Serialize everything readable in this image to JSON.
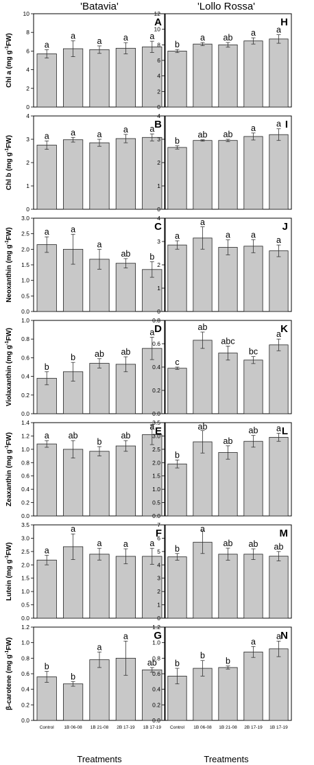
{
  "figure": {
    "col_titles": [
      "'Batavia'",
      "'Lollo Rossa'"
    ],
    "x_axis_title": "Treatments"
  },
  "chart_data": [
    {
      "panel": "A",
      "type": "bar",
      "cultivar": "'Batavia'",
      "ylabel": "Chl a (mg g-1FW)",
      "ylim": [
        0,
        10
      ],
      "yticks": [
        0,
        2,
        4,
        6,
        8,
        10
      ],
      "categories": [
        "Control",
        "1B 06-08",
        "1B 21-08",
        "2B 17-19",
        "1B 17-19"
      ],
      "values": [
        5.7,
        6.25,
        6.15,
        6.3,
        6.45
      ],
      "errors": [
        0.45,
        0.85,
        0.4,
        0.6,
        0.6
      ],
      "letters": [
        "a",
        "a",
        "a",
        "a",
        "a"
      ]
    },
    {
      "panel": "B",
      "type": "bar",
      "cultivar": "'Batavia'",
      "ylabel": "Chl b (mg g-1FW)",
      "ylim": [
        0,
        4
      ],
      "yticks": [
        0,
        1,
        2,
        3,
        4
      ],
      "categories": [
        "Control",
        "1B 06-08",
        "1B 21-08",
        "2B 17-19",
        "1B 17-19"
      ],
      "values": [
        2.75,
        2.98,
        2.85,
        3.03,
        3.08
      ],
      "errors": [
        0.18,
        0.1,
        0.15,
        0.18,
        0.15
      ],
      "letters": [
        "a",
        "a",
        "a",
        "a",
        "a"
      ]
    },
    {
      "panel": "C",
      "type": "bar",
      "cultivar": "'Batavia'",
      "ylabel": "Neoxanthin (mg g-1FW)",
      "ylim": [
        0,
        3.0
      ],
      "yticks": [
        0.0,
        0.5,
        1.0,
        1.5,
        2.0,
        2.5,
        3.0
      ],
      "categories": [
        "Control",
        "1B 06-08",
        "1B 21-08",
        "2B 17-19",
        "1B 17-19"
      ],
      "values": [
        2.15,
        2.0,
        1.68,
        1.55,
        1.35
      ],
      "errors": [
        0.25,
        0.48,
        0.32,
        0.15,
        0.25
      ],
      "letters": [
        "a",
        "a",
        "a",
        "ab",
        "b"
      ]
    },
    {
      "panel": "D",
      "type": "bar",
      "cultivar": "'Batavia'",
      "ylabel": "Violaxanthin (mg g-1FW)",
      "ylim": [
        0,
        1.0
      ],
      "yticks": [
        0.0,
        0.2,
        0.4,
        0.6,
        0.8,
        1.0
      ],
      "categories": [
        "Control",
        "1B 06-08",
        "1B 21-08",
        "2B 17-19",
        "1B 17-19"
      ],
      "values": [
        0.38,
        0.45,
        0.54,
        0.53,
        0.7
      ],
      "errors": [
        0.07,
        0.1,
        0.05,
        0.08,
        0.12
      ],
      "letters": [
        "b",
        "b",
        "ab",
        "ab",
        "a"
      ]
    },
    {
      "panel": "E",
      "type": "bar",
      "cultivar": "'Batavia'",
      "ylabel": "Zeaxanthin (mg g-1FW)",
      "ylim": [
        0,
        1.4
      ],
      "yticks": [
        0.0,
        0.2,
        0.4,
        0.6,
        0.8,
        1.0,
        1.2,
        1.4
      ],
      "categories": [
        "Control",
        "1B 06-08",
        "1B 21-08",
        "2B 17-19",
        "1B 17-19"
      ],
      "values": [
        1.08,
        1.0,
        0.97,
        1.05,
        1.22
      ],
      "errors": [
        0.05,
        0.13,
        0.07,
        0.08,
        0.15
      ],
      "letters": [
        "a",
        "ab",
        "b",
        "ab",
        "a"
      ]
    },
    {
      "panel": "F",
      "type": "bar",
      "cultivar": "'Batavia'",
      "ylabel": "Lutein (mg g-1FW)",
      "ylim": [
        0,
        3.5
      ],
      "yticks": [
        0.0,
        0.5,
        1.0,
        1.5,
        2.0,
        2.5,
        3.0,
        3.5
      ],
      "categories": [
        "Control",
        "1B 06-08",
        "1B 21-08",
        "2B 17-19",
        "1B 17-19"
      ],
      "values": [
        2.18,
        2.68,
        2.4,
        2.32,
        2.32
      ],
      "errors": [
        0.18,
        0.48,
        0.22,
        0.28,
        0.3
      ],
      "letters": [
        "a",
        "a",
        "a",
        "a",
        "a"
      ]
    },
    {
      "panel": "G",
      "type": "bar",
      "cultivar": "'Batavia'",
      "ylabel": "β-carotene (mg g-1FW)",
      "ylim": [
        0,
        1.2
      ],
      "yticks": [
        0.0,
        0.2,
        0.4,
        0.6,
        0.8,
        1.0,
        1.2
      ],
      "categories": [
        "Control",
        "1B 06-08",
        "1B 21-08",
        "2B 17-19",
        "1B 17-19"
      ],
      "values": [
        0.56,
        0.47,
        0.78,
        0.8,
        0.65
      ],
      "errors": [
        0.07,
        0.03,
        0.1,
        0.22,
        0.03
      ],
      "letters": [
        "b",
        "b",
        "a",
        "a",
        "ab"
      ]
    },
    {
      "panel": "H",
      "type": "bar",
      "cultivar": "'Lollo Rossa'",
      "ylabel": "",
      "ylim": [
        0,
        12
      ],
      "yticks": [
        0,
        2,
        4,
        6,
        8,
        10,
        12
      ],
      "categories": [
        "Control",
        "1B 06-08",
        "1B 21-08",
        "2B 17-19",
        "1B 17-19"
      ],
      "values": [
        7.2,
        8.1,
        8.0,
        8.5,
        8.75
      ],
      "errors": [
        0.2,
        0.2,
        0.3,
        0.4,
        0.55
      ],
      "letters": [
        "b",
        "a",
        "ab",
        "a",
        "a"
      ]
    },
    {
      "panel": "I",
      "type": "bar",
      "cultivar": "'Lollo Rossa'",
      "ylabel": "",
      "ylim": [
        0,
        4
      ],
      "yticks": [
        0,
        1,
        2,
        3,
        4
      ],
      "categories": [
        "Control",
        "1B 06-08",
        "1B 21-08",
        "2B 17-19",
        "1B 17-19"
      ],
      "values": [
        2.65,
        2.95,
        2.95,
        3.12,
        3.2
      ],
      "errors": [
        0.07,
        0.03,
        0.05,
        0.15,
        0.25
      ],
      "letters": [
        "b",
        "ab",
        "ab",
        "a",
        "a"
      ]
    },
    {
      "panel": "J",
      "type": "bar",
      "cultivar": "'Lollo Rossa'",
      "ylabel": "",
      "ylim": [
        0,
        4
      ],
      "yticks": [
        0,
        1,
        2,
        3,
        4
      ],
      "categories": [
        "Control",
        "1B 06-08",
        "1B 21-08",
        "2B 17-19",
        "1B 17-19"
      ],
      "values": [
        2.85,
        3.15,
        2.75,
        2.8,
        2.6
      ],
      "errors": [
        0.18,
        0.48,
        0.32,
        0.28,
        0.25
      ],
      "letters": [
        "a",
        "a",
        "a",
        "a",
        "a"
      ]
    },
    {
      "panel": "K",
      "type": "bar",
      "cultivar": "'Lollo Rossa'",
      "ylabel": "",
      "ylim": [
        0,
        0.8
      ],
      "yticks": [
        0.0,
        0.2,
        0.4,
        0.6,
        0.8
      ],
      "categories": [
        "Control",
        "1B 06-08",
        "1B 21-08",
        "2B 17-19",
        "1B 17-19"
      ],
      "values": [
        0.39,
        0.63,
        0.52,
        0.46,
        0.59
      ],
      "errors": [
        0.01,
        0.07,
        0.06,
        0.03,
        0.05
      ],
      "letters": [
        "c",
        "ab",
        "abc",
        "bc",
        "a"
      ]
    },
    {
      "panel": "L",
      "type": "bar",
      "cultivar": "'Lollo Rossa'",
      "ylabel": "",
      "ylim": [
        0,
        3.5
      ],
      "yticks": [
        0.0,
        0.5,
        1.0,
        1.5,
        2.0,
        2.5,
        3.0,
        3.5
      ],
      "categories": [
        "Control",
        "1B 06-08",
        "1B 21-08",
        "2B 17-19",
        "1B 17-19"
      ],
      "values": [
        1.95,
        2.78,
        2.38,
        2.8,
        2.95
      ],
      "errors": [
        0.15,
        0.42,
        0.25,
        0.22,
        0.15
      ],
      "letters": [
        "b",
        "ab",
        "ab",
        "ab",
        "a"
      ]
    },
    {
      "panel": "M",
      "type": "bar",
      "cultivar": "'Lollo Rossa'",
      "ylabel": "",
      "ylim": [
        0,
        7
      ],
      "yticks": [
        0,
        1,
        2,
        3,
        4,
        5,
        6,
        7
      ],
      "categories": [
        "Control",
        "1B 06-08",
        "1B 21-08",
        "2B 17-19",
        "1B 17-19"
      ],
      "values": [
        4.6,
        5.7,
        4.8,
        4.8,
        4.65
      ],
      "errors": [
        0.25,
        0.85,
        0.45,
        0.4,
        0.35
      ],
      "letters": [
        "b",
        "a",
        "ab",
        "ab",
        "ab"
      ]
    },
    {
      "panel": "N",
      "type": "bar",
      "cultivar": "'Lollo Rossa'",
      "ylabel": "",
      "ylim": [
        0,
        1.2
      ],
      "yticks": [
        0.0,
        0.2,
        0.4,
        0.6,
        0.8,
        1.0,
        1.2
      ],
      "categories": [
        "Control",
        "1B 06-08",
        "1B 21-08",
        "2B 17-19",
        "1B 17-19"
      ],
      "values": [
        0.57,
        0.67,
        0.68,
        0.88,
        0.92
      ],
      "errors": [
        0.1,
        0.1,
        0.02,
        0.07,
        0.1
      ],
      "letters": [
        "b",
        "b",
        "b",
        "a",
        "a"
      ]
    }
  ]
}
